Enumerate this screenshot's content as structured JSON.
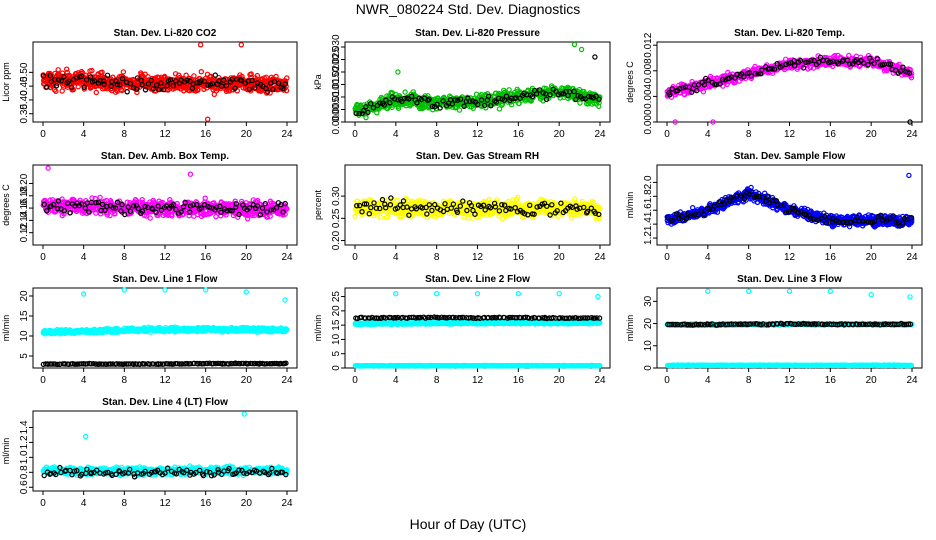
{
  "title": "NWR_080224 Std. Dev. Diagnostics",
  "xlabel": "Hour of Day (UTC)",
  "chart_data": [
    {
      "type": "scatter",
      "title": "Stan. Dev. Li-820 CO2",
      "ylabel": "Licor ppm",
      "xlim": [
        0,
        24
      ],
      "xticks": [
        0,
        4,
        8,
        12,
        16,
        20,
        24
      ],
      "ylim": [
        0.32,
        0.61
      ],
      "yticks": [
        0.35,
        0.4,
        0.45,
        0.5
      ],
      "series": [
        {
          "color": "#ff0000",
          "center": [
            0.47,
            0.47,
            0.46,
            0.46,
            0.46,
            0.46,
            0.45
          ],
          "spread": 0.045,
          "per_hour": 32,
          "outliers": [
            [
              15.5,
              0.6
            ],
            [
              19.5,
              0.6
            ],
            [
              16.2,
              0.33
            ]
          ]
        },
        {
          "color": "#000000",
          "center": [
            0.47,
            0.47,
            0.46,
            0.46,
            0.46,
            0.46,
            0.45
          ],
          "spread": 0.035,
          "per_hour": 4,
          "outliers": []
        }
      ]
    },
    {
      "type": "scatter",
      "title": "Stan. Dev. Li-820 Pressure",
      "ylabel": "kPa",
      "xlim": [
        0,
        24
      ],
      "xticks": [
        0,
        4,
        8,
        12,
        16,
        20,
        24
      ],
      "ylim": [
        0,
        0.032
      ],
      "yticks": [
        0.0,
        0.005,
        0.01,
        0.015,
        0.02,
        0.025,
        0.03
      ],
      "series": [
        {
          "color": "#00c000",
          "center": [
            0.004,
            0.009,
            0.008,
            0.008,
            0.01,
            0.012,
            0.009
          ],
          "spread": 0.004,
          "per_hour": 28,
          "outliers": [
            [
              4.2,
              0.02
            ],
            [
              21.5,
              0.031
            ],
            [
              22.2,
              0.029
            ]
          ]
        },
        {
          "color": "#000000",
          "center": [
            0.004,
            0.009,
            0.008,
            0.008,
            0.01,
            0.012,
            0.009
          ],
          "spread": 0.003,
          "per_hour": 4,
          "outliers": [
            [
              23.5,
              0.026
            ]
          ]
        }
      ]
    },
    {
      "type": "scatter",
      "title": "Stan. Dev. Li-820 Temp.",
      "ylabel": "degrees C",
      "xlim": [
        0,
        24
      ],
      "xticks": [
        0,
        4,
        8,
        12,
        16,
        20,
        24
      ],
      "ylim": [
        0,
        0.0125
      ],
      "yticks": [
        0.0,
        0.004,
        0.008,
        0.012
      ],
      "series": [
        {
          "color": "#ff00ff",
          "center": [
            0.0045,
            0.006,
            0.0075,
            0.009,
            0.0095,
            0.0095,
            0.0075
          ],
          "spread": 0.0012,
          "per_hour": 26,
          "outliers": [
            [
              0.8,
              0.0
            ],
            [
              4.5,
              0.0
            ]
          ]
        },
        {
          "color": "#000000",
          "center": [
            0.0045,
            0.006,
            0.0075,
            0.009,
            0.0095,
            0.0095,
            0.0075
          ],
          "spread": 0.001,
          "per_hour": 4,
          "outliers": [
            [
              23.8,
              0.0
            ]
          ]
        }
      ]
    },
    {
      "type": "scatter",
      "title": "Stan. Dev. Amb. Box Temp.",
      "ylabel": "degrees C",
      "xlim": [
        0,
        24
      ],
      "xticks": [
        0,
        4,
        8,
        12,
        16,
        20,
        24
      ],
      "ylim": [
        0.1,
        0.23
      ],
      "yticks": [
        0.12,
        0.14,
        0.16,
        0.18,
        0.2
      ],
      "series": [
        {
          "color": "#ff00ff",
          "center": [
            0.163,
            0.162,
            0.16,
            0.16,
            0.16,
            0.158,
            0.158
          ],
          "spread": 0.018,
          "per_hour": 30,
          "outliers": [
            [
              0.5,
              0.225
            ],
            [
              14.5,
              0.215
            ]
          ]
        },
        {
          "color": "#000000",
          "center": [
            0.163,
            0.162,
            0.16,
            0.16,
            0.16,
            0.158,
            0.158
          ],
          "spread": 0.015,
          "per_hour": 4,
          "outliers": []
        }
      ]
    },
    {
      "type": "scatter",
      "title": "Stan. Dev. Gas Stream RH",
      "ylabel": "percent",
      "xlim": [
        0,
        24
      ],
      "xticks": [
        0,
        4,
        8,
        12,
        16,
        20,
        24
      ],
      "ylim": [
        0.19,
        0.37
      ],
      "yticks": [
        0.2,
        0.25,
        0.3
      ],
      "series": [
        {
          "color": "#ffff00",
          "center": [
            0.275,
            0.275,
            0.272,
            0.272,
            0.272,
            0.272,
            0.27
          ],
          "spread": 0.028,
          "per_hour": 30,
          "outliers": []
        },
        {
          "color": "#000000",
          "center": [
            0.275,
            0.275,
            0.272,
            0.272,
            0.272,
            0.272,
            0.27
          ],
          "spread": 0.022,
          "per_hour": 4,
          "outliers": []
        }
      ]
    },
    {
      "type": "scatter",
      "title": "Stan. Dev. Sample Flow",
      "ylabel": "ml/min",
      "xlim": [
        0,
        24
      ],
      "xticks": [
        0,
        4,
        8,
        12,
        16,
        20,
        24
      ],
      "ylim": [
        1.1,
        2.25
      ],
      "yticks": [
        1.2,
        1.4,
        1.6,
        1.8,
        2.0
      ],
      "series": [
        {
          "color": "#0000ff",
          "center": [
            1.45,
            1.6,
            1.85,
            1.6,
            1.45,
            1.45,
            1.45
          ],
          "spread": 0.11,
          "per_hour": 32,
          "outliers": [
            [
              23.7,
              2.1
            ]
          ]
        },
        {
          "color": "#000000",
          "center": [
            1.45,
            1.6,
            1.85,
            1.6,
            1.45,
            1.45,
            1.45
          ],
          "spread": 0.09,
          "per_hour": 4,
          "outliers": []
        }
      ]
    },
    {
      "type": "scatter",
      "title": "Stan. Dev. Line 1 Flow",
      "ylabel": "ml/min",
      "xlim": [
        0,
        24
      ],
      "xticks": [
        0,
        4,
        8,
        12,
        16,
        20,
        24
      ],
      "ylim": [
        2,
        22
      ],
      "yticks": [
        5,
        10,
        15,
        20
      ],
      "series": [
        {
          "color": "#00ffff",
          "center": [
            11.0,
            11.2,
            11.4,
            11.6,
            11.6,
            11.6,
            11.5
          ],
          "spread": 0.7,
          "per_hour": 30,
          "outliers": [
            [
              4.0,
              20.5
            ],
            [
              8.0,
              21.5
            ],
            [
              12.0,
              21.5
            ],
            [
              16.0,
              21.5
            ],
            [
              20.0,
              21.0
            ],
            [
              23.8,
              19.0
            ]
          ]
        },
        {
          "color": "#000000",
          "center": [
            3.0,
            3.0,
            3.0,
            3.0,
            3.1,
            3.1,
            3.1
          ],
          "spread": 0.15,
          "per_hour": 6,
          "outliers": []
        }
      ]
    },
    {
      "type": "scatter",
      "title": "Stan. Dev. Line 2 Flow",
      "ylabel": "ml/min",
      "xlim": [
        0,
        24
      ],
      "xticks": [
        0,
        4,
        8,
        12,
        16,
        20,
        24
      ],
      "ylim": [
        0,
        28
      ],
      "yticks": [
        0,
        5,
        10,
        15,
        20,
        25
      ],
      "series": [
        {
          "color": "#00ffff",
          "center": [
            15.5,
            15.6,
            15.7,
            15.8,
            15.8,
            15.8,
            15.8
          ],
          "spread": 0.5,
          "per_hour": 30,
          "outliers": [
            [
              4.0,
              26.0
            ],
            [
              8.0,
              26.0
            ],
            [
              12.0,
              26.0
            ],
            [
              16.0,
              26.0
            ],
            [
              20.0,
              26.0
            ],
            [
              23.8,
              25.0
            ]
          ]
        },
        {
          "color": "#00ffff",
          "center": [
            0.8,
            0.8,
            0.8,
            0.8,
            0.8,
            0.8,
            0.8
          ],
          "spread": 0.15,
          "per_hour": 12,
          "outliers": []
        },
        {
          "color": "#000000",
          "center": [
            17.5,
            17.6,
            17.6,
            17.6,
            17.6,
            17.5,
            17.5
          ],
          "spread": 0.3,
          "per_hour": 5,
          "outliers": []
        }
      ]
    },
    {
      "type": "scatter",
      "title": "Stan. Dev. Line 3 Flow",
      "ylabel": "ml/min",
      "xlim": [
        0,
        24
      ],
      "xticks": [
        0,
        4,
        8,
        12,
        16,
        20,
        24
      ],
      "ylim": [
        0,
        36
      ],
      "yticks": [
        0,
        10,
        20,
        30
      ],
      "series": [
        {
          "color": "#00ffff",
          "center": [
            19.5,
            19.5,
            19.6,
            19.7,
            19.7,
            19.7,
            19.6
          ],
          "spread": 0.5,
          "per_hour": 24,
          "outliers": [
            [
              4.0,
              34.5
            ],
            [
              8.0,
              34.5
            ],
            [
              12.0,
              34.5
            ],
            [
              16.0,
              34.5
            ],
            [
              20.0,
              33.0
            ],
            [
              23.8,
              32.0
            ]
          ]
        },
        {
          "color": "#00ffff",
          "center": [
            1.2,
            1.2,
            1.2,
            1.2,
            1.2,
            1.2,
            1.2
          ],
          "spread": 0.2,
          "per_hour": 12,
          "outliers": []
        },
        {
          "color": "#000000",
          "center": [
            19.5,
            19.6,
            19.7,
            19.8,
            19.7,
            19.7,
            19.7
          ],
          "spread": 0.4,
          "per_hour": 5,
          "outliers": []
        }
      ]
    },
    {
      "type": "scatter",
      "title": "Stan. Dev. Line 4 (LT) Flow",
      "ylabel": "ml/min",
      "xlim": [
        0,
        24
      ],
      "xticks": [
        0,
        4,
        8,
        12,
        16,
        20,
        24
      ],
      "ylim": [
        0.55,
        1.62
      ],
      "yticks": [
        0.6,
        0.8,
        1.0,
        1.2,
        1.4
      ],
      "series": [
        {
          "color": "#00ffff",
          "center": [
            0.82,
            0.82,
            0.81,
            0.82,
            0.82,
            0.82,
            0.82
          ],
          "spread": 0.07,
          "per_hour": 28,
          "outliers": [
            [
              4.2,
              1.28
            ],
            [
              19.8,
              1.58
            ]
          ]
        },
        {
          "color": "#000000",
          "center": [
            0.8,
            0.8,
            0.8,
            0.8,
            0.8,
            0.8,
            0.8
          ],
          "spread": 0.07,
          "per_hour": 4,
          "outliers": []
        }
      ]
    }
  ]
}
